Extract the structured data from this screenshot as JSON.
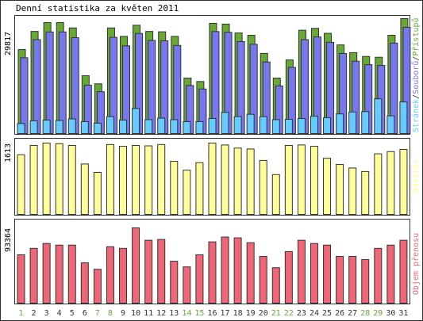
{
  "title": "Denní statistika za květen 2011",
  "colors": {
    "hits": "#66aa33",
    "files": "#7777ee",
    "pages": "#66ccff",
    "visits": "#ffff99",
    "volume": "#ee6677",
    "weekend_day": "#66aa33",
    "weekday_day": "#333333",
    "frame": "#333333"
  },
  "chart_data": [
    {
      "type": "bar",
      "title": "Denní statistika za květen 2011",
      "ylabel": "29817",
      "legend": [
        "Přístupů",
        "Souborů",
        "Stránek"
      ],
      "legend_separator": "/",
      "legend_placement": "right-vertical",
      "ylim": [
        0,
        29817
      ],
      "categories": [
        "1",
        "2",
        "3",
        "4",
        "5",
        "6",
        "7",
        "8",
        "9",
        "10",
        "11",
        "12",
        "13",
        "14",
        "15",
        "16",
        "17",
        "18",
        "19",
        "20",
        "21",
        "22",
        "23",
        "24",
        "25",
        "26",
        "27",
        "28",
        "29",
        "30",
        "31"
      ],
      "series": [
        {
          "name": "Přístupů",
          "values": [
            21800,
            26500,
            28800,
            28800,
            27400,
            15000,
            12900,
            27400,
            25200,
            28100,
            26500,
            26400,
            25200,
            14400,
            13500,
            28600,
            28400,
            26100,
            25500,
            20800,
            14400,
            19100,
            26800,
            27300,
            26000,
            23000,
            21000,
            20000,
            19800,
            25500,
            29817
          ]
        },
        {
          "name": "Souborů",
          "values": [
            20900,
            25600,
            27600,
            27600,
            26100,
            13800,
            12100,
            26200,
            24000,
            27200,
            25400,
            25300,
            24100,
            13700,
            12800,
            27700,
            27500,
            25100,
            24400,
            19800,
            13600,
            18400,
            25600,
            26300,
            24900,
            22000,
            20000,
            19100,
            18900,
            24700,
            28800
          ]
        },
        {
          "name": "Stránek",
          "values": [
            2600,
            3300,
            3500,
            3400,
            3800,
            3100,
            2700,
            4400,
            3500,
            6500,
            3600,
            4000,
            3600,
            3100,
            3100,
            3900,
            5500,
            4400,
            5000,
            4400,
            3600,
            3700,
            3900,
            4500,
            4100,
            5100,
            5600,
            5700,
            9000,
            4600,
            8200
          ]
        }
      ],
      "day_label_colors": [
        "weekend",
        "weekday",
        "weekday",
        "weekday",
        "weekday",
        "weekday",
        "weekend",
        "weekend",
        "weekday",
        "weekday",
        "weekday",
        "weekday",
        "weekday",
        "weekend",
        "weekend",
        "weekday",
        "weekday",
        "weekday",
        "weekday",
        "weekday",
        "weekend",
        "weekend",
        "weekday",
        "weekday",
        "weekday",
        "weekday",
        "weekday",
        "weekend",
        "weekend",
        "weekday",
        "weekday"
      ]
    },
    {
      "type": "bar",
      "ylabel": "1613",
      "legend": [
        "Návštěv"
      ],
      "ylim": [
        0,
        1613
      ],
      "series": [
        {
          "name": "Návštěv",
          "values": [
            1350,
            1560,
            1613,
            1600,
            1560,
            1140,
            950,
            1580,
            1540,
            1560,
            1550,
            1580,
            1200,
            1000,
            1170,
            1613,
            1570,
            1500,
            1480,
            1220,
            900,
            1560,
            1570,
            1540,
            1270,
            1130,
            1050,
            970,
            1370,
            1420,
            1470
          ]
        }
      ]
    },
    {
      "type": "bar",
      "ylabel": "93364",
      "legend": [
        "Objem přenosu"
      ],
      "ylim": [
        0,
        93364
      ],
      "series": [
        {
          "name": "Objem přenosu",
          "values": [
            60000,
            68000,
            74000,
            72000,
            72000,
            50000,
            42000,
            70000,
            68000,
            93364,
            78000,
            79000,
            52000,
            45000,
            60000,
            76000,
            82000,
            81000,
            75000,
            58000,
            44000,
            64000,
            78000,
            74000,
            72000,
            58000,
            58000,
            54000,
            68000,
            72000,
            78000
          ]
        }
      ]
    }
  ],
  "x_labels": [
    "1",
    "2",
    "3",
    "4",
    "5",
    "6",
    "7",
    "8",
    "9",
    "10",
    "11",
    "12",
    "13",
    "14",
    "15",
    "16",
    "17",
    "18",
    "19",
    "20",
    "21",
    "22",
    "23",
    "24",
    "25",
    "26",
    "27",
    "28",
    "29",
    "30",
    "31"
  ]
}
